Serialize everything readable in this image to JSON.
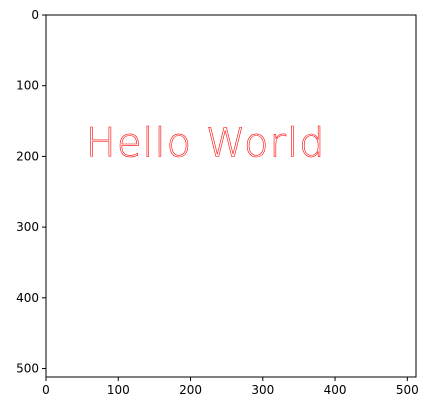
{
  "chart_data": {
    "type": "image",
    "title": "",
    "xlabel": "",
    "ylabel": "",
    "xlim": [
      0,
      512
    ],
    "ylim": [
      512,
      0
    ],
    "y_inverted": true,
    "grid": false,
    "x_ticks": [
      0,
      100,
      200,
      300,
      400,
      500
    ],
    "y_ticks": [
      0,
      100,
      200,
      300,
      400,
      500
    ],
    "annotation": {
      "text": "Hello World",
      "x": 55,
      "y": 200,
      "color": "#ff0000"
    },
    "background_color": "#ffffff"
  }
}
